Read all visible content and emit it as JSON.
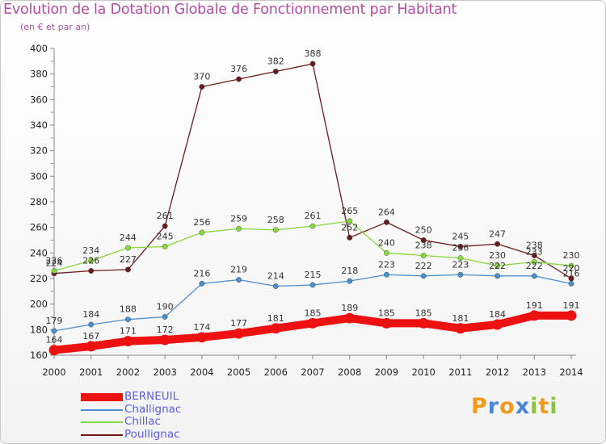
{
  "header": {
    "title": "Evolution de la Dotation Globale de Fonctionnement par Habitant",
    "subtitle": "(en € et par an)"
  },
  "chart_data": {
    "type": "line",
    "title": "Evolution de la Dotation Globale de Fonctionnement par Habitant",
    "subtitle": "(en € et par an)",
    "xlabel": "",
    "ylabel": "",
    "x": [
      "2000",
      "2001",
      "2002",
      "2003",
      "2004",
      "2005",
      "2006",
      "2007",
      "2008",
      "2009",
      "2010",
      "2011",
      "2012",
      "2013",
      "2014"
    ],
    "ylim": [
      160,
      400
    ],
    "yticks": [
      160,
      180,
      200,
      220,
      240,
      260,
      280,
      300,
      320,
      340,
      360,
      380,
      400
    ],
    "grid": false,
    "legend_position": "bottom-left",
    "series": [
      {
        "name": "Poullignac",
        "color": "#6b1a1a",
        "values": [
          224,
          226,
          227,
          261,
          370,
          376,
          382,
          388,
          252,
          264,
          250,
          245,
          247,
          238,
          220
        ],
        "thick": false
      },
      {
        "name": "Chillac",
        "color": "#86d93f",
        "values": [
          226,
          234,
          244,
          245,
          256,
          259,
          258,
          261,
          265,
          240,
          238,
          236,
          230,
          233,
          230
        ],
        "thick": false
      },
      {
        "name": "Challignac",
        "color": "#4b8fcf",
        "values": [
          179,
          184,
          188,
          190,
          216,
          219,
          214,
          215,
          218,
          223,
          222,
          223,
          222,
          222,
          216
        ],
        "thick": false
      },
      {
        "name": "BERNEUIL",
        "color": "#ee1111",
        "values": [
          164,
          167,
          171,
          172,
          174,
          177,
          181,
          185,
          189,
          185,
          185,
          181,
          184,
          191,
          191
        ],
        "thick": true
      }
    ],
    "legend": [
      "BERNEUIL",
      "Challignac",
      "Chillac",
      "Poullignac"
    ]
  },
  "logo": {
    "letters": [
      "P",
      "r",
      "o",
      "x",
      "i",
      "t",
      "i"
    ],
    "colors": [
      "#f29a1a",
      "#4a86d8",
      "#f29a1a",
      "#4a86d8",
      "#8ac43c",
      "#f29a1a",
      "#8ac43c"
    ]
  }
}
